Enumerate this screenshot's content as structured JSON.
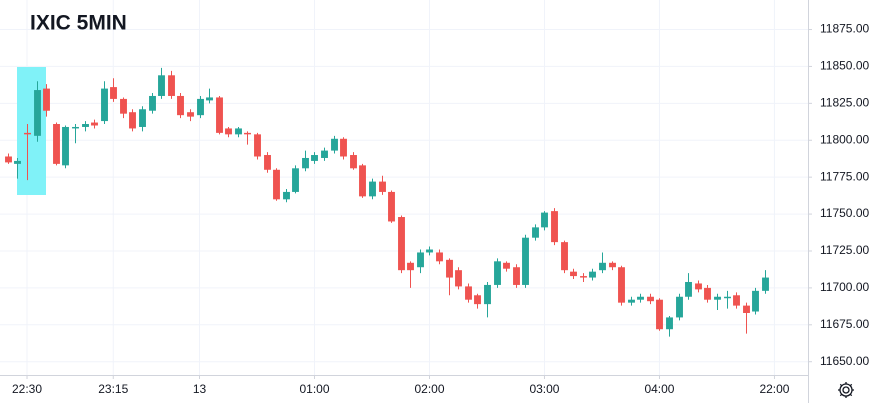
{
  "chart_data": {
    "type": "candlestick",
    "title": "IXIC 5MIN",
    "x": [
      -2,
      -1,
      0,
      1,
      2,
      3,
      4,
      5,
      6,
      7,
      8,
      9,
      10,
      11,
      12,
      13,
      14,
      15,
      16,
      17,
      18,
      19,
      20,
      21,
      22,
      23,
      24,
      25,
      26,
      27,
      28,
      29,
      30,
      31,
      32,
      33,
      34,
      35,
      36,
      37,
      38,
      39,
      40,
      41,
      42,
      43,
      44,
      45,
      46,
      47,
      48,
      49,
      50,
      51,
      52,
      53,
      54,
      55,
      56,
      57,
      58,
      59,
      60,
      61,
      62,
      63,
      64,
      65,
      66,
      67,
      68,
      69,
      70,
      71,
      72,
      73,
      74,
      75,
      76,
      77
    ],
    "open": [
      11789,
      11784,
      11805,
      11803,
      11835,
      11811,
      11783,
      11808,
      11809,
      11812,
      11813,
      11836,
      11828,
      11819,
      11809,
      11820,
      11830,
      11844,
      11830,
      11819,
      11817,
      11827,
      11829,
      11808,
      11804,
      11805,
      11804,
      11790,
      11780,
      11760,
      11765,
      11781,
      11786,
      11788,
      11793,
      11801,
      11790,
      11783,
      11762,
      11772,
      11765,
      11748,
      11717,
      11714,
      11724,
      11724,
      11719,
      11712,
      11701,
      11695,
      11689,
      11702,
      11717,
      11714,
      11702,
      11734,
      11741,
      11752,
      11731,
      11711,
      11708,
      11707,
      11712,
      11717,
      11714,
      11690,
      11692,
      11694,
      11692,
      11672,
      11680,
      11694,
      11703,
      11700,
      11692,
      11693,
      11695,
      11688,
      11684,
      11698
    ],
    "high": [
      11791,
      11788,
      11811,
      11840,
      11838,
      11812,
      11810,
      11811,
      11813,
      11814,
      11840,
      11842,
      11829,
      11821,
      11823,
      11832,
      11849,
      11847,
      11832,
      11821,
      11830,
      11835,
      11830,
      11809,
      11809,
      11806,
      11805,
      11792,
      11781,
      11767,
      11783,
      11793,
      11792,
      11795,
      11803,
      11802,
      11792,
      11784,
      11774,
      11776,
      11766,
      11749,
      11718,
      11726,
      11728,
      11726,
      11720,
      11714,
      11703,
      11696,
      11704,
      11720,
      11718,
      11716,
      11736,
      11743,
      11752,
      11754,
      11732,
      11713,
      11710,
      11713,
      11724,
      11718,
      11715,
      11694,
      11696,
      11696,
      11693,
      11681,
      11696,
      11710,
      11705,
      11702,
      11696,
      11698,
      11697,
      11690,
      11700,
      11712
    ],
    "low": [
      11784,
      11774,
      11773,
      11799,
      11816,
      11783,
      11781,
      11798,
      11806,
      11808,
      11811,
      11826,
      11815,
      11806,
      11806,
      11818,
      11828,
      11828,
      11815,
      11813,
      11815,
      11825,
      11804,
      11802,
      11802,
      11797,
      11787,
      11778,
      11759,
      11758,
      11764,
      11779,
      11784,
      11786,
      11791,
      11787,
      11780,
      11761,
      11760,
      11763,
      11744,
      11710,
      11700,
      11710,
      11722,
      11716,
      11695,
      11699,
      11690,
      11686,
      11680,
      11700,
      11711,
      11700,
      11700,
      11732,
      11739,
      11729,
      11710,
      11706,
      11704,
      11705,
      11710,
      11712,
      11688,
      11688,
      11690,
      11689,
      11671,
      11667,
      11678,
      11692,
      11697,
      11690,
      11685,
      11686,
      11686,
      11669,
      11682,
      11696
    ],
    "close": [
      11785,
      11786,
      11804,
      11834,
      11820,
      11784,
      11809,
      11809,
      11811,
      11810,
      11835,
      11828,
      11818,
      11808,
      11821,
      11830,
      11844,
      11830,
      11817,
      11816,
      11828,
      11829,
      11805,
      11804,
      11808,
      11804,
      11789,
      11780,
      11760,
      11765,
      11781,
      11788,
      11790,
      11793,
      11801,
      11789,
      11781,
      11762,
      11772,
      11765,
      11745,
      11712,
      11712,
      11724,
      11726,
      11718,
      11707,
      11701,
      11692,
      11689,
      11702,
      11718,
      11713,
      11702,
      11734,
      11741,
      11751,
      11731,
      11712,
      11708,
      11707,
      11711,
      11717,
      11714,
      11690,
      11692,
      11694,
      11691,
      11672,
      11680,
      11694,
      11704,
      11699,
      11692,
      11694,
      11694,
      11688,
      11683,
      11698,
      11707
    ],
    "up_color": "#26a69a",
    "down_color": "#ef5350",
    "xlim": [
      -2.82,
      81.5
    ],
    "xticks": [
      {
        "value": 0,
        "label": "22:30"
      },
      {
        "value": 9,
        "label": "23:15"
      },
      {
        "value": 18,
        "label": "13"
      },
      {
        "value": 30,
        "label": "01:00"
      },
      {
        "value": 42,
        "label": "02:00"
      },
      {
        "value": 54,
        "label": "03:00"
      },
      {
        "value": 66,
        "label": "04:00"
      },
      {
        "value": 78,
        "label": "22:00"
      }
    ],
    "ylim": [
      11641,
      11895
    ],
    "yticks": [
      {
        "value": 11650,
        "label": "11650.00"
      },
      {
        "value": 11675,
        "label": "11675.00"
      },
      {
        "value": 11700,
        "label": "11700.00"
      },
      {
        "value": 11725,
        "label": "11725.00"
      },
      {
        "value": 11750,
        "label": "11750.00"
      },
      {
        "value": 11775,
        "label": "11775.00"
      },
      {
        "value": 11800,
        "label": "11800.00"
      },
      {
        "value": 11825,
        "label": "11825.00"
      },
      {
        "value": 11850,
        "label": "11850.00"
      },
      {
        "value": 11875,
        "label": "11875.00"
      }
    ],
    "grid": true
  }
}
